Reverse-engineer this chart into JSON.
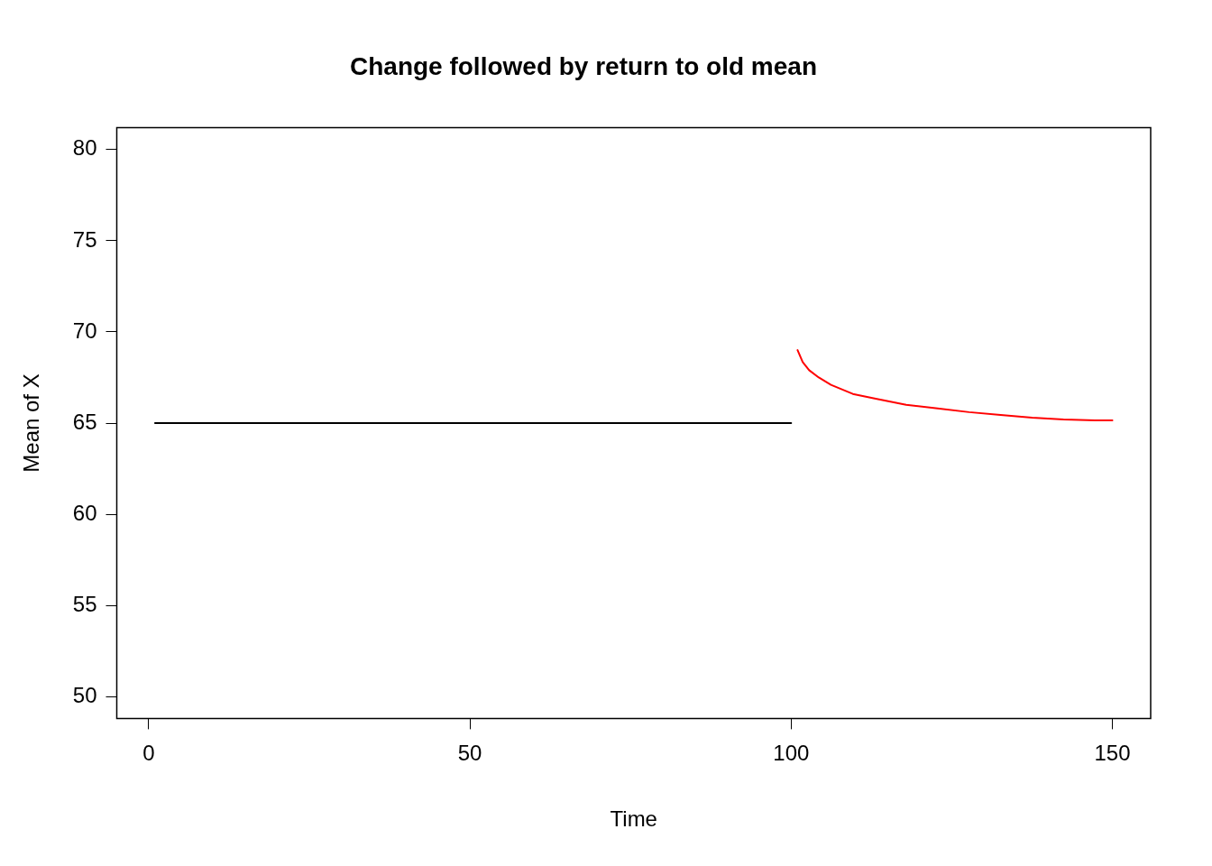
{
  "chart_data": {
    "type": "line",
    "title": "Change followed by return to old mean",
    "xlabel": "Time",
    "ylabel": "Mean of X",
    "xlim": [
      -4.96,
      155.96
    ],
    "xticks": [
      0,
      50,
      100,
      150
    ],
    "ylim": [
      48.8,
      81.2
    ],
    "yticks": [
      50,
      55,
      60,
      65,
      70,
      75,
      80
    ],
    "grid": false,
    "legend": false,
    "marker": "none",
    "line_style": "solid",
    "series": [
      {
        "color": "#000000",
        "x": [
          1,
          100
        ],
        "values": [
          65,
          65
        ]
      },
      {
        "color": "#ff0000",
        "x": [
          101,
          101.8,
          102.8,
          104.3,
          106.2,
          109.6,
          113,
          117.9,
          122.8,
          127.7,
          132.6,
          137.5,
          142.4,
          147.3,
          150
        ],
        "values": [
          69.0,
          68.35,
          67.9,
          67.5,
          67.1,
          66.6,
          66.35,
          66.0,
          65.8,
          65.6,
          65.45,
          65.3,
          65.2,
          65.15,
          65.15
        ]
      }
    ]
  }
}
